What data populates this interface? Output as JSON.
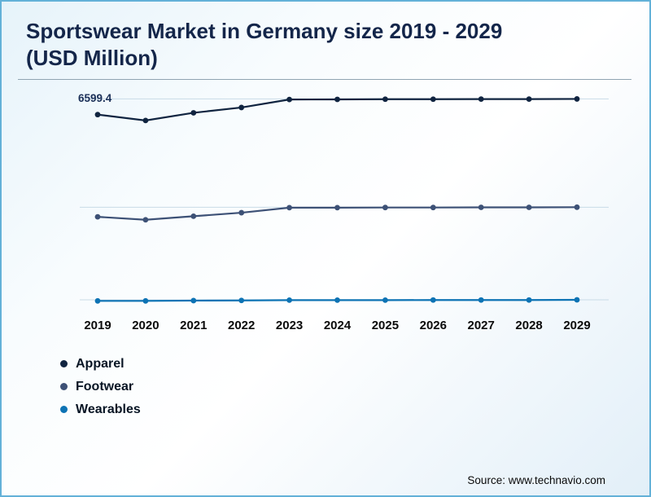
{
  "title": "Sportswear Market in Germany size 2019 - 2029 (USD Million)",
  "source": "Source: www.technavio.com",
  "legend": [
    {
      "label": "Apparel",
      "color": "#102440"
    },
    {
      "label": "Footwear",
      "color": "#3d5176"
    },
    {
      "label": "Wearables",
      "color": "#0d73b4"
    }
  ],
  "chart_data": {
    "type": "line",
    "categories": [
      "2019",
      "2020",
      "2021",
      "2022",
      "2023",
      "2024",
      "2025",
      "2026",
      "2027",
      "2028",
      "2029"
    ],
    "series": [
      {
        "name": "Apparel",
        "color": "#102440",
        "values": [
          6599.4,
          6400,
          6660,
          6840,
          7110,
          7115,
          7120,
          7120,
          7125,
          7125,
          7130
        ]
      },
      {
        "name": "Footwear",
        "color": "#3d5176",
        "values": [
          3140,
          3040,
          3160,
          3280,
          3450,
          3450,
          3455,
          3455,
          3460,
          3460,
          3465
        ]
      },
      {
        "name": "Wearables",
        "color": "#0d73b4",
        "values": [
          295,
          295,
          305,
          310,
          320,
          320,
          320,
          325,
          325,
          325,
          330
        ]
      }
    ],
    "title": "Sportswear Market in Germany size 2019 - 2029 (USD Million)",
    "xlabel": "",
    "ylabel": "",
    "ylim": [
      0,
      7500
    ],
    "grid": "faint horizontal gridlines",
    "legend_position": "bottom-left",
    "annotations": [
      {
        "text": "6599.4",
        "series": "Apparel",
        "x": "2019"
      }
    ]
  }
}
